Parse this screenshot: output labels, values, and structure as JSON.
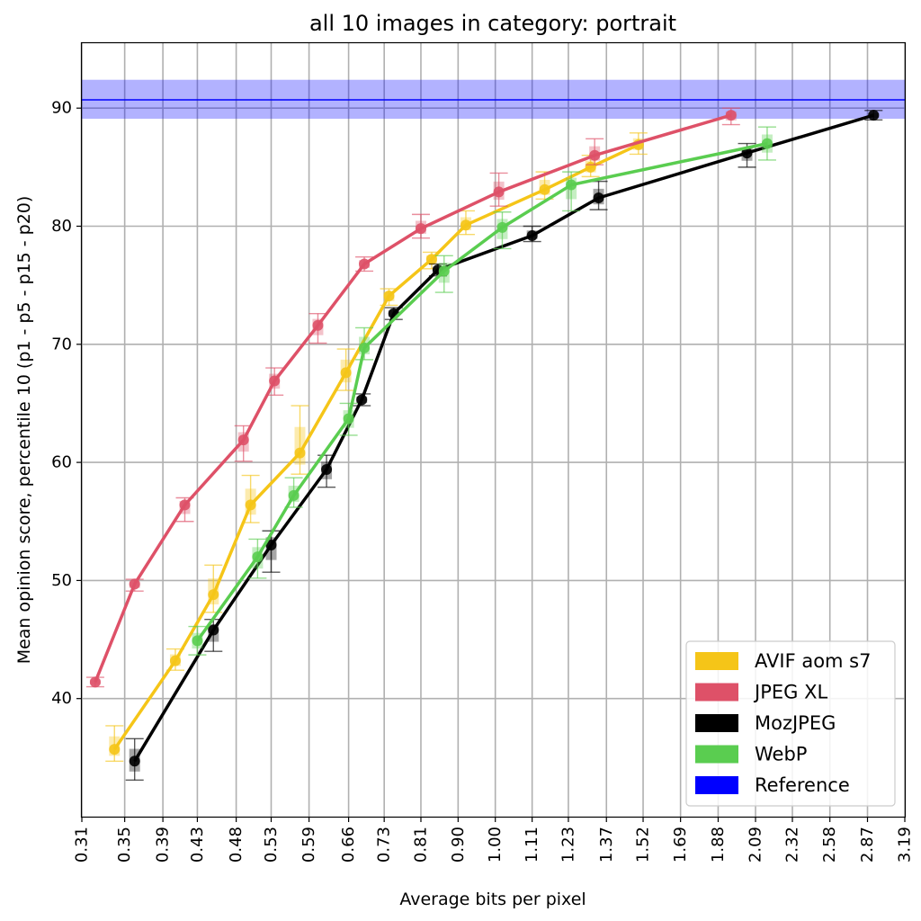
{
  "chart_data": {
    "type": "line",
    "title": "all 10 images in category: portrait",
    "xlabel": "Average bits per pixel",
    "ylabel": "Mean opinion score, percentile 10 (p1 - p5 - p15 - p20)",
    "x_scale": "log",
    "x_ticks": [
      "0.31",
      "0.35",
      "0.39",
      "0.43",
      "0.48",
      "0.53",
      "0.59",
      "0.66",
      "0.73",
      "0.81",
      "0.90",
      "1.00",
      "1.11",
      "1.23",
      "1.37",
      "1.52",
      "1.69",
      "1.88",
      "2.09",
      "2.32",
      "2.58",
      "2.87",
      "3.19"
    ],
    "xlim": [
      0.31,
      3.19
    ],
    "y_ticks": [
      40,
      50,
      60,
      70,
      80,
      90
    ],
    "ylim": [
      30,
      95.5
    ],
    "grid": true,
    "legend_position": "lower right",
    "reference": {
      "name": "Reference",
      "value": 90.7,
      "band": [
        89.1,
        92.4
      ],
      "color": "#0000ff"
    },
    "series": [
      {
        "name": "AVIF aom s7",
        "color": "#f5c518",
        "x": [
          0.34,
          0.404,
          0.45,
          0.5,
          0.575,
          0.655,
          0.74,
          0.835,
          0.92,
          1.15,
          1.31,
          1.5
        ],
        "y": [
          35.7,
          43.2,
          48.8,
          56.4,
          60.8,
          67.6,
          74.1,
          77.2,
          80.1,
          83.1,
          85.0,
          86.9
        ],
        "err_low": [
          1.0,
          0.8,
          1.5,
          1.5,
          1.8,
          1.5,
          0.8,
          0.8,
          0.8,
          0.8,
          0.8,
          0.8
        ],
        "err_high": [
          2.0,
          1.0,
          2.5,
          2.5,
          4.0,
          2.0,
          0.6,
          0.6,
          1.2,
          1.5,
          1.0,
          1.0
        ]
      },
      {
        "name": "JPEG XL",
        "color": "#de5168",
        "x": [
          0.322,
          0.36,
          0.415,
          0.49,
          0.535,
          0.605,
          0.69,
          0.81,
          1.01,
          1.325,
          1.95
        ],
        "y": [
          41.4,
          49.7,
          56.4,
          61.9,
          66.9,
          71.6,
          76.8,
          79.8,
          82.9,
          86.0,
          89.4
        ],
        "err_low": [
          0.4,
          0.6,
          1.4,
          1.8,
          1.2,
          1.5,
          0.6,
          0.8,
          1.2,
          0.8,
          0.8
        ],
        "err_high": [
          0.4,
          0.4,
          0.6,
          1.2,
          1.1,
          1.0,
          0.6,
          1.2,
          1.6,
          1.4,
          0.6
        ]
      },
      {
        "name": "MozJPEG",
        "color": "#000000",
        "x": [
          0.36,
          0.45,
          0.53,
          0.62,
          0.685,
          0.75,
          0.85,
          1.11,
          1.34,
          2.04,
          2.92
        ],
        "y": [
          34.7,
          45.8,
          53.0,
          59.4,
          65.3,
          72.6,
          76.3,
          79.2,
          82.4,
          86.2,
          89.4
        ],
        "err_low": [
          1.6,
          1.8,
          2.3,
          1.5,
          0.5,
          0.5,
          0.5,
          0.5,
          1.0,
          1.2,
          0.4
        ],
        "err_high": [
          1.9,
          0.9,
          1.2,
          1.2,
          0.5,
          0.5,
          0.5,
          0.8,
          1.4,
          0.8,
          0.4
        ]
      },
      {
        "name": "WebP",
        "color": "#5acd50",
        "x": [
          0.43,
          0.51,
          0.565,
          0.66,
          0.69,
          0.865,
          1.02,
          1.24,
          2.16
        ],
        "y": [
          44.9,
          52.0,
          57.2,
          63.7,
          69.7,
          76.2,
          79.9,
          83.5,
          87.0
        ],
        "err_low": [
          1.2,
          1.8,
          1.0,
          1.4,
          1.0,
          1.8,
          1.8,
          2.2,
          1.4
        ],
        "err_high": [
          1.2,
          1.5,
          1.5,
          1.3,
          1.7,
          1.3,
          1.3,
          1.1,
          1.4
        ]
      }
    ]
  }
}
